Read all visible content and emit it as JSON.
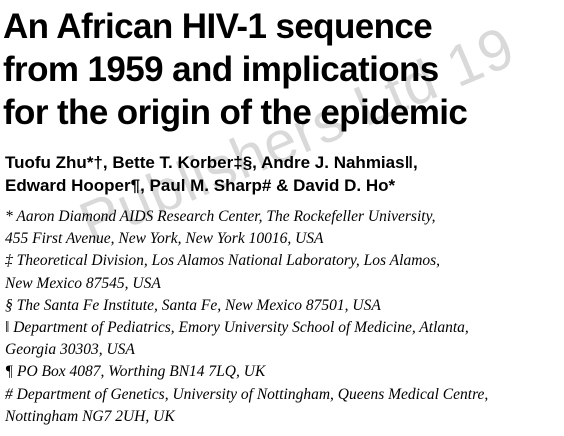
{
  "watermark": "Publishers Ltd 19",
  "title": {
    "lines": [
      "An African HIV-1 sequence",
      "from 1959 and implications",
      "for the origin of the epidemic"
    ]
  },
  "authors": {
    "lines": [
      "Tuofu Zhu*†, Bette T. Korber‡§, Andre J. Nahmias‖,",
      "Edward Hooper¶, Paul M. Sharp# & David D. Ho*"
    ]
  },
  "affiliations": {
    "lines": [
      "* Aaron Diamond AIDS Research Center, The Rockefeller University,",
      "455 First Avenue, New York, New York 10016, USA",
      "‡ Theoretical Division, Los Alamos National Laboratory, Los Alamos,",
      "New Mexico 87545, USA",
      "§ The Santa Fe Institute, Santa Fe, New Mexico 87501, USA",
      "‖ Department of Pediatrics, Emory University School of Medicine, Atlanta,",
      "Georgia 30303, USA",
      "¶ PO Box 4087, Worthing BN14 7LQ, UK",
      "# Department of Genetics, University of Nottingham, Queens Medical Centre,",
      "Nottingham NG7 2UH, UK"
    ]
  }
}
